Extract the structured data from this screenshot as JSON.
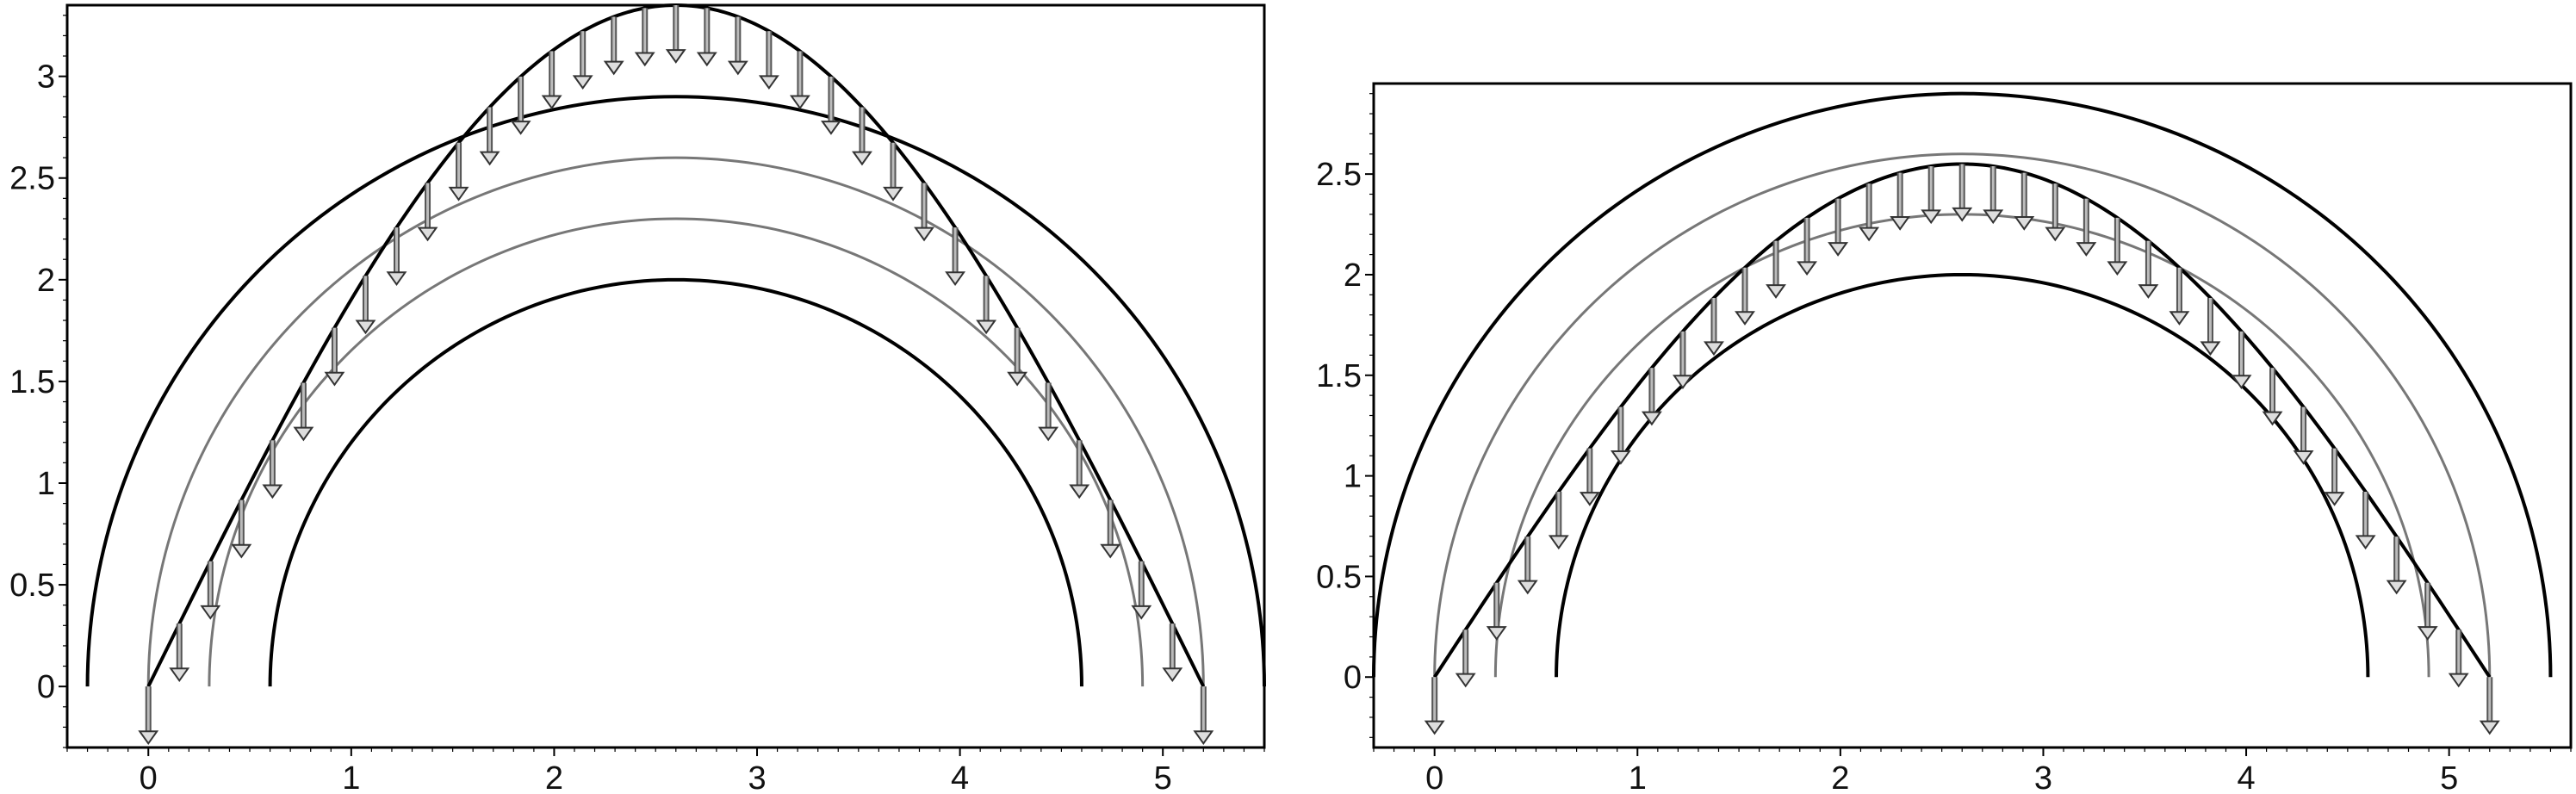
{
  "chart_data": [
    {
      "type": "line",
      "title": "",
      "xlabel": "",
      "ylabel": "",
      "xlim": [
        -0.4,
        5.5
      ],
      "ylim": [
        -0.3,
        3.35
      ],
      "x_ticks": [
        "0",
        "1",
        "2",
        "3",
        "4",
        "5"
      ],
      "y_ticks": [
        "0",
        "0.5",
        "1",
        "1.5",
        "2",
        "2.5",
        "3"
      ],
      "arcs": [
        {
          "cx": 2.6,
          "r": 2.9,
          "color": "#000000"
        },
        {
          "cx": 2.6,
          "r": 2.6,
          "color": "#777777"
        },
        {
          "cx": 2.6,
          "r": 2.3,
          "color": "#777777"
        },
        {
          "cx": 2.6,
          "r": 2.0,
          "color": "#000000"
        }
      ],
      "profile": {
        "x0": 0,
        "x1": 5.2,
        "y_end": 0,
        "y_top": 3.35,
        "shape": "sine"
      },
      "arrows": {
        "count": 35,
        "x_start": 0,
        "x_end": 5.2
      }
    },
    {
      "type": "line",
      "title": "",
      "xlabel": "",
      "ylabel": "",
      "xlim": [
        -0.3,
        5.6
      ],
      "ylim": [
        -0.35,
        2.95
      ],
      "x_ticks": [
        "0",
        "1",
        "2",
        "3",
        "4",
        "5"
      ],
      "y_ticks": [
        "0",
        "0.5",
        "1",
        "1.5",
        "2",
        "2.5"
      ],
      "arcs": [
        {
          "cx": 2.6,
          "r": 2.9,
          "color": "#000000"
        },
        {
          "cx": 2.6,
          "r": 2.6,
          "color": "#777777"
        },
        {
          "cx": 2.6,
          "r": 2.3,
          "color": "#777777"
        },
        {
          "cx": 2.6,
          "r": 2.0,
          "color": "#000000"
        }
      ],
      "profile": {
        "x0": 0,
        "x1": 5.2,
        "y_end": 0,
        "y_top": 2.55,
        "shape": "sine"
      },
      "arrows": {
        "count": 35,
        "x_start": 0,
        "x_end": 5.2
      }
    }
  ]
}
